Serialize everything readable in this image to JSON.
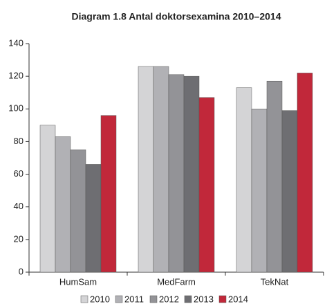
{
  "chart_data": {
    "type": "bar",
    "title": "Diagram 1.8 Antal doktorsexamina 2010–2014",
    "categories": [
      "HumSam",
      "MedFarm",
      "TekNat"
    ],
    "series": [
      {
        "name": "2010",
        "color": "#d4d4d6",
        "values": [
          90,
          126,
          113
        ]
      },
      {
        "name": "2011",
        "color": "#b1b1b5",
        "values": [
          83,
          126,
          100
        ]
      },
      {
        "name": "2012",
        "color": "#939397",
        "values": [
          75,
          121,
          117
        ]
      },
      {
        "name": "2013",
        "color": "#6e6e72",
        "values": [
          66,
          120,
          99
        ]
      },
      {
        "name": "2014",
        "color": "#c1283a",
        "values": [
          96,
          107,
          122
        ]
      }
    ],
    "ylim": [
      0,
      140
    ],
    "yticks": [
      0,
      20,
      40,
      60,
      80,
      100,
      120,
      140
    ],
    "legend": "bottom"
  }
}
